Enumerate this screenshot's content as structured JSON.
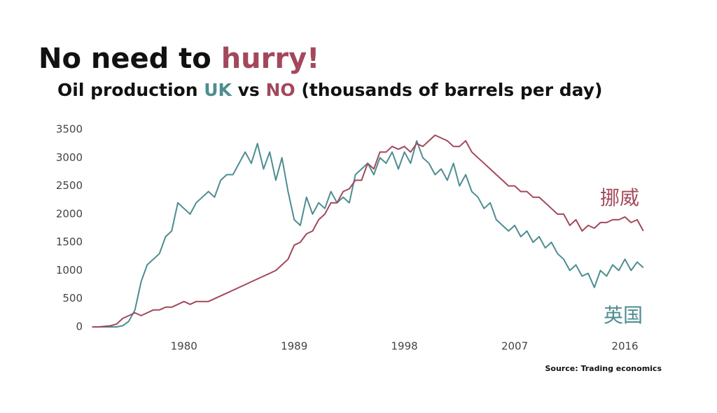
{
  "chart_data": {
    "type": "line",
    "title": [
      "No need to ",
      "hurry!"
    ],
    "subtitle": [
      "Oil production ",
      "UK",
      " vs ",
      "NO",
      " (thousands of barrels per day)"
    ],
    "source": "Source: Trading economics",
    "x": [
      1972.5,
      1973,
      1973.5,
      1974,
      1974.5,
      1975,
      1975.5,
      1976,
      1976.5,
      1977,
      1977.5,
      1978,
      1978.5,
      1979,
      1979.5,
      1980,
      1980.5,
      1981,
      1981.5,
      1982,
      1982.5,
      1983,
      1983.5,
      1984,
      1984.5,
      1985,
      1985.5,
      1986,
      1986.5,
      1987,
      1987.5,
      1988,
      1988.5,
      1989,
      1989.5,
      1990,
      1990.5,
      1991,
      1991.5,
      1992,
      1992.5,
      1993,
      1993.5,
      1994,
      1994.5,
      1995,
      1995.5,
      1996,
      1996.5,
      1997,
      1997.5,
      1998,
      1998.5,
      1999,
      1999.5,
      2000,
      2000.5,
      2001,
      2001.5,
      2002,
      2002.5,
      2003,
      2003.5,
      2004,
      2004.5,
      2005,
      2005.5,
      2006,
      2006.5,
      2007,
      2007.5,
      2008,
      2008.5,
      2009,
      2009.5,
      2010,
      2010.5,
      2011,
      2011.5,
      2012,
      2012.5,
      2013,
      2013.5,
      2014,
      2014.5,
      2015,
      2015.5,
      2016,
      2016.5,
      2017,
      2017.5
    ],
    "series": [
      {
        "name": "英国",
        "color": "#4d8d91",
        "values": [
          0,
          0,
          0,
          0,
          0,
          20,
          100,
          300,
          800,
          1100,
          1200,
          1300,
          1600,
          1700,
          2200,
          2100,
          2000,
          2200,
          2300,
          2400,
          2300,
          2600,
          2700,
          2700,
          2900,
          3100,
          2900,
          3250,
          2800,
          3100,
          2600,
          3000,
          2400,
          1900,
          1800,
          2300,
          2000,
          2200,
          2100,
          2400,
          2200,
          2300,
          2200,
          2700,
          2800,
          2900,
          2700,
          3000,
          2900,
          3100,
          2800,
          3100,
          2900,
          3300,
          3000,
          2900,
          2700,
          2800,
          2600,
          2900,
          2500,
          2700,
          2400,
          2300,
          2100,
          2200,
          1900,
          1800,
          1700,
          1800,
          1600,
          1700,
          1500,
          1600,
          1400,
          1500,
          1300,
          1200,
          1000,
          1100,
          900,
          950,
          700,
          1000,
          900,
          1100,
          1000,
          1200,
          1000,
          1150,
          1050
        ]
      },
      {
        "name": "挪威",
        "color": "#a3485c",
        "values": [
          0,
          0,
          10,
          20,
          50,
          150,
          200,
          250,
          200,
          250,
          300,
          300,
          350,
          350,
          400,
          450,
          400,
          450,
          450,
          450,
          500,
          550,
          600,
          650,
          700,
          750,
          800,
          850,
          900,
          950,
          1000,
          1100,
          1200,
          1450,
          1500,
          1650,
          1700,
          1900,
          2000,
          2200,
          2200,
          2400,
          2450,
          2600,
          2600,
          2900,
          2800,
          3100,
          3100,
          3200,
          3150,
          3200,
          3100,
          3250,
          3200,
          3300,
          3400,
          3350,
          3300,
          3200,
          3200,
          3300,
          3100,
          3000,
          2900,
          2800,
          2700,
          2600,
          2500,
          2500,
          2400,
          2400,
          2300,
          2300,
          2200,
          2100,
          2000,
          2000,
          1800,
          1900,
          1700,
          1800,
          1750,
          1850,
          1850,
          1900,
          1900,
          1950,
          1850,
          1900,
          1700
        ]
      }
    ],
    "xlim": [
      1972.3,
      2017.8
    ],
    "xticks": [
      1980,
      1989,
      1998,
      2007,
      2016
    ],
    "ylim": [
      0,
      3500
    ],
    "yticks": [
      0,
      500,
      1000,
      1500,
      2000,
      2500,
      3000,
      3500
    ],
    "grid": false
  }
}
